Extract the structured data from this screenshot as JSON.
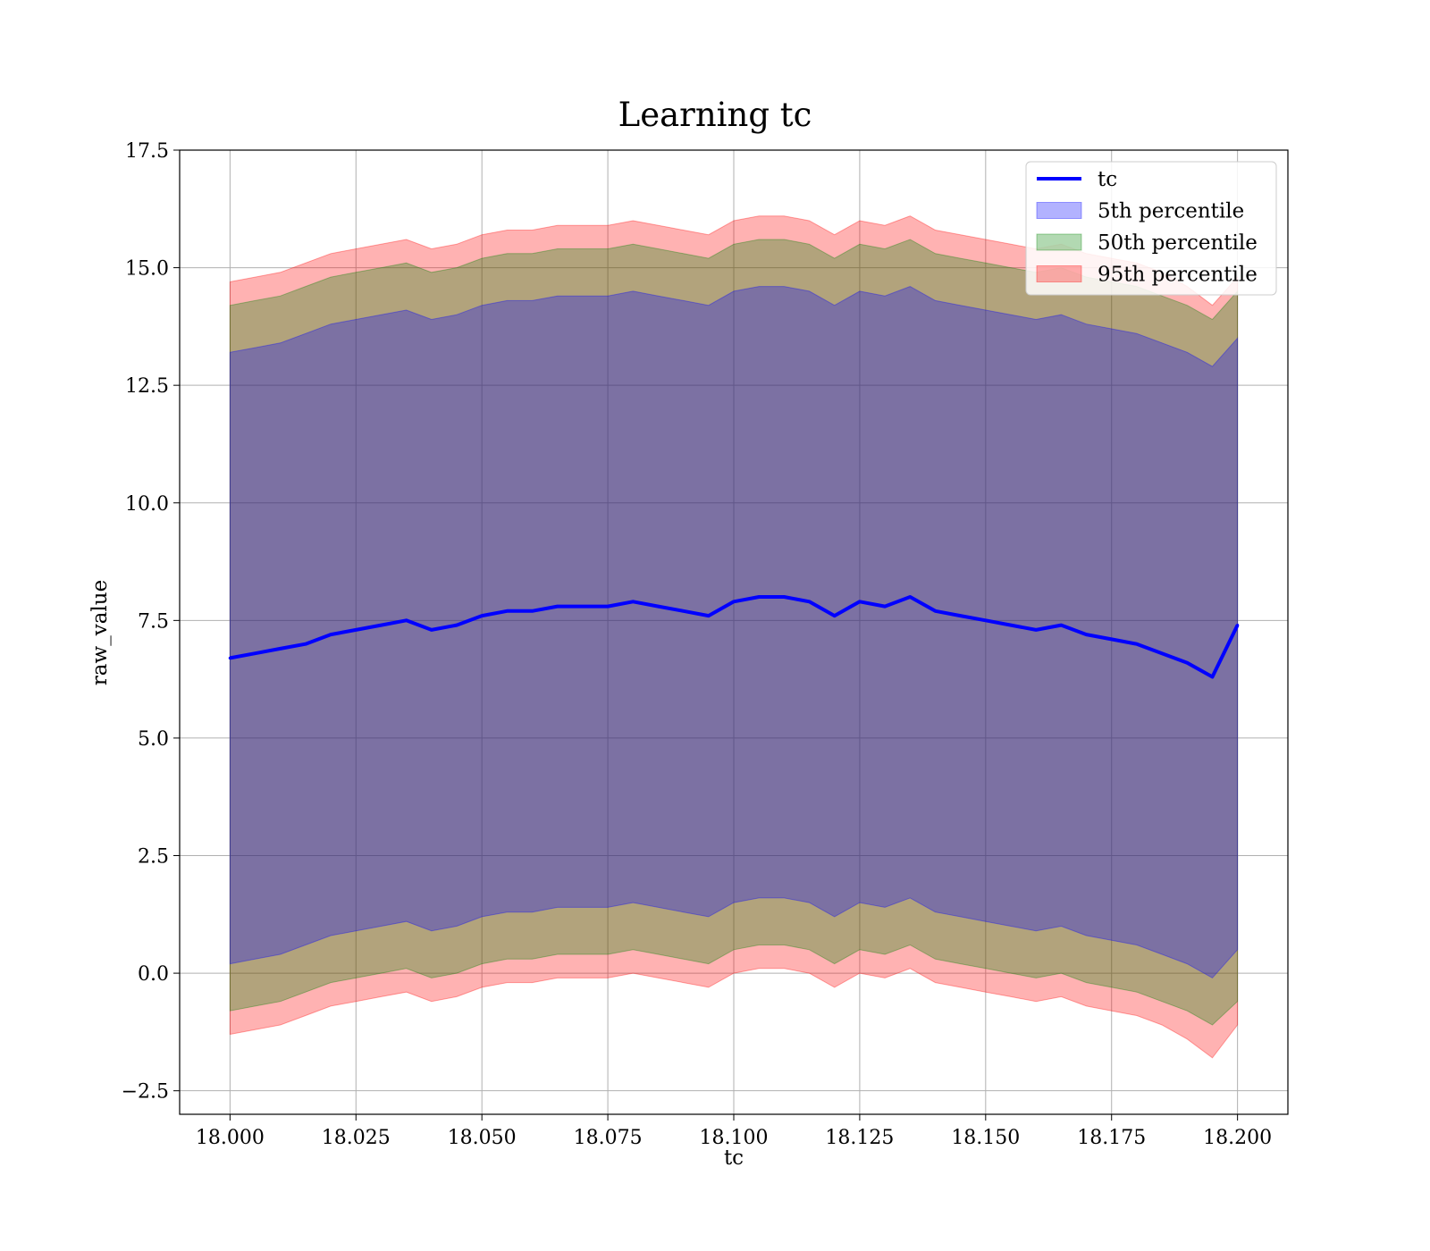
{
  "chart_data": {
    "type": "line",
    "title": "Learning tc",
    "xlabel": "tc",
    "ylabel": "raw_value",
    "xlim": [
      17.99,
      18.21
    ],
    "ylim": [
      -3.0,
      17.5
    ],
    "xticks": [
      18.0,
      18.025,
      18.05,
      18.075,
      18.1,
      18.125,
      18.15,
      18.175,
      18.2
    ],
    "xtick_labels": [
      "18.000",
      "18.025",
      "18.050",
      "18.075",
      "18.100",
      "18.125",
      "18.150",
      "18.175",
      "18.200"
    ],
    "yticks": [
      -2.5,
      0.0,
      2.5,
      5.0,
      7.5,
      10.0,
      12.5,
      15.0,
      17.5
    ],
    "ytick_labels": [
      "−2.5",
      "0.0",
      "2.5",
      "5.0",
      "7.5",
      "10.0",
      "12.5",
      "15.0",
      "17.5"
    ],
    "grid": true,
    "legend_position": "top-right",
    "x": [
      18.0,
      18.005,
      18.01,
      18.015,
      18.02,
      18.025,
      18.03,
      18.035,
      18.04,
      18.045,
      18.05,
      18.055,
      18.06,
      18.065,
      18.07,
      18.075,
      18.08,
      18.085,
      18.09,
      18.095,
      18.1,
      18.105,
      18.11,
      18.115,
      18.12,
      18.125,
      18.13,
      18.135,
      18.14,
      18.145,
      18.15,
      18.155,
      18.16,
      18.165,
      18.17,
      18.175,
      18.18,
      18.185,
      18.19,
      18.195,
      18.2
    ],
    "series": [
      {
        "name": "tc",
        "kind": "line",
        "color": "#0000ff",
        "values": [
          6.7,
          6.8,
          6.9,
          7.0,
          7.2,
          7.3,
          7.4,
          7.5,
          7.3,
          7.4,
          7.6,
          7.7,
          7.7,
          7.8,
          7.8,
          7.8,
          7.9,
          7.8,
          7.7,
          7.6,
          7.9,
          8.0,
          8.0,
          7.9,
          7.6,
          7.9,
          7.8,
          8.0,
          7.7,
          7.6,
          7.5,
          7.4,
          7.3,
          7.4,
          7.2,
          7.1,
          7.0,
          6.8,
          6.6,
          6.3,
          7.4
        ]
      },
      {
        "name": "5th percentile",
        "kind": "band",
        "color": "#0000ff",
        "lower": [
          0.2,
          0.3,
          0.4,
          0.6,
          0.8,
          0.9,
          1.0,
          1.1,
          0.9,
          1.0,
          1.2,
          1.3,
          1.3,
          1.4,
          1.4,
          1.4,
          1.5,
          1.4,
          1.3,
          1.2,
          1.5,
          1.6,
          1.6,
          1.5,
          1.2,
          1.5,
          1.4,
          1.6,
          1.3,
          1.2,
          1.1,
          1.0,
          0.9,
          1.0,
          0.8,
          0.7,
          0.6,
          0.4,
          0.2,
          -0.1,
          0.5
        ],
        "upper": [
          13.2,
          13.3,
          13.4,
          13.6,
          13.8,
          13.9,
          14.0,
          14.1,
          13.9,
          14.0,
          14.2,
          14.3,
          14.3,
          14.4,
          14.4,
          14.4,
          14.5,
          14.4,
          14.3,
          14.2,
          14.5,
          14.6,
          14.6,
          14.5,
          14.2,
          14.5,
          14.4,
          14.6,
          14.3,
          14.2,
          14.1,
          14.0,
          13.9,
          14.0,
          13.8,
          13.7,
          13.6,
          13.4,
          13.2,
          12.9,
          13.5
        ]
      },
      {
        "name": "50th percentile",
        "kind": "band",
        "color": "#008000",
        "lower": [
          -0.8,
          -0.7,
          -0.6,
          -0.4,
          -0.2,
          -0.1,
          0.0,
          0.1,
          -0.1,
          0.0,
          0.2,
          0.3,
          0.3,
          0.4,
          0.4,
          0.4,
          0.5,
          0.4,
          0.3,
          0.2,
          0.5,
          0.6,
          0.6,
          0.5,
          0.2,
          0.5,
          0.4,
          0.6,
          0.3,
          0.2,
          0.1,
          0.0,
          -0.1,
          0.0,
          -0.2,
          -0.3,
          -0.4,
          -0.6,
          -0.8,
          -1.1,
          -0.6
        ],
        "upper": [
          14.2,
          14.3,
          14.4,
          14.6,
          14.8,
          14.9,
          15.0,
          15.1,
          14.9,
          15.0,
          15.2,
          15.3,
          15.3,
          15.4,
          15.4,
          15.4,
          15.5,
          15.4,
          15.3,
          15.2,
          15.5,
          15.6,
          15.6,
          15.5,
          15.2,
          15.5,
          15.4,
          15.6,
          15.3,
          15.2,
          15.1,
          15.0,
          14.9,
          15.0,
          14.8,
          14.7,
          14.6,
          14.4,
          14.2,
          13.9,
          14.5
        ]
      },
      {
        "name": "95th percentile",
        "kind": "band",
        "color": "#ff0000",
        "lower": [
          -1.3,
          -1.2,
          -1.1,
          -0.9,
          -0.7,
          -0.6,
          -0.5,
          -0.4,
          -0.6,
          -0.5,
          -0.3,
          -0.2,
          -0.2,
          -0.1,
          -0.1,
          -0.1,
          0.0,
          -0.1,
          -0.2,
          -0.3,
          0.0,
          0.1,
          0.1,
          0.0,
          -0.3,
          0.0,
          -0.1,
          0.1,
          -0.2,
          -0.3,
          -0.4,
          -0.5,
          -0.6,
          -0.5,
          -0.7,
          -0.8,
          -0.9,
          -1.1,
          -1.4,
          -1.8,
          -1.1
        ],
        "upper": [
          14.7,
          14.8,
          14.9,
          15.1,
          15.3,
          15.4,
          15.5,
          15.6,
          15.4,
          15.5,
          15.7,
          15.8,
          15.8,
          15.9,
          15.9,
          15.9,
          16.0,
          15.9,
          15.8,
          15.7,
          16.0,
          16.1,
          16.1,
          16.0,
          15.7,
          16.0,
          15.9,
          16.1,
          15.8,
          15.7,
          15.6,
          15.5,
          15.4,
          15.5,
          15.3,
          15.2,
          15.1,
          14.9,
          14.6,
          14.2,
          14.8
        ]
      }
    ]
  }
}
